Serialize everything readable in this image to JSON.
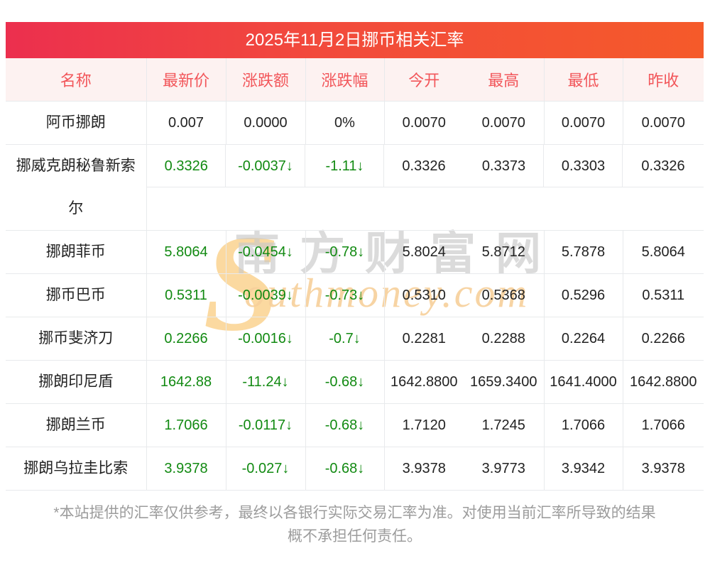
{
  "page": {
    "title": "2025年11月2日挪币相关汇率",
    "note_lines": [
      "*本站提供的汇率仅供参考，最终以各银行实际交易汇率为准。对使用当前汇率所导致的结果",
      "概不承担任何责任。"
    ]
  },
  "colors": {
    "title_gradient_left": "#ec2f4e",
    "title_gradient_right": "#f55a2a",
    "header_background": "#fdf2f1",
    "header_text": "#f2565a",
    "value_down_green": "#128a12",
    "value_black": "#222222",
    "grid_border": "#e8eaec",
    "note_text": "#9c9c9c",
    "watermark_orange": "#f7d09b",
    "watermark_gray": "#c9c9c9"
  },
  "watermark": {
    "initial": "S",
    "cn": "南方财富网",
    "en": "outhmoney.com"
  },
  "table": {
    "columns": [
      "名称",
      "最新价",
      "涨跌额",
      "涨跌幅",
      "今开",
      "最高",
      "最低",
      "昨收"
    ],
    "rows": [
      {
        "name": "阿币挪朗",
        "green": false,
        "tall": false,
        "values": [
          "0.007",
          "0.0000",
          "0%",
          "0.0070",
          "0.0070",
          "0.0070",
          "0.0070"
        ]
      },
      {
        "name": "挪威克朗秘鲁新索尔",
        "green": true,
        "tall": true,
        "values": [
          "0.3326",
          "-0.0037↓",
          "-1.11↓",
          "0.3326",
          "0.3373",
          "0.3303",
          "0.3326"
        ]
      },
      {
        "name": "挪朗菲币",
        "green": true,
        "tall": false,
        "values": [
          "5.8064",
          "-0.0454↓",
          "-0.78↓",
          "5.8024",
          "5.8712",
          "5.7878",
          "5.8064"
        ]
      },
      {
        "name": "挪币巴币",
        "green": true,
        "tall": false,
        "values": [
          "0.5311",
          "-0.0039↓",
          "-0.73↓",
          "0.5310",
          "0.5368",
          "0.5296",
          "0.5311"
        ]
      },
      {
        "name": "挪币斐济刀",
        "green": true,
        "tall": false,
        "values": [
          "0.2266",
          "-0.0016↓",
          "-0.7↓",
          "0.2281",
          "0.2288",
          "0.2264",
          "0.2266"
        ]
      },
      {
        "name": "挪朗印尼盾",
        "green": true,
        "tall": false,
        "values": [
          "1642.88",
          "-11.24↓",
          "-0.68↓",
          "1642.8800",
          "1659.3400",
          "1641.4000",
          "1642.8800"
        ]
      },
      {
        "name": "挪朗兰币",
        "green": true,
        "tall": false,
        "values": [
          "1.7066",
          "-0.0117↓",
          "-0.68↓",
          "1.7120",
          "1.7245",
          "1.7066",
          "1.7066"
        ]
      },
      {
        "name": "挪朗乌拉圭比索",
        "green": true,
        "tall": false,
        "values": [
          "3.9378",
          "-0.027↓",
          "-0.68↓",
          "3.9378",
          "3.9773",
          "3.9342",
          "3.9378"
        ]
      }
    ]
  }
}
